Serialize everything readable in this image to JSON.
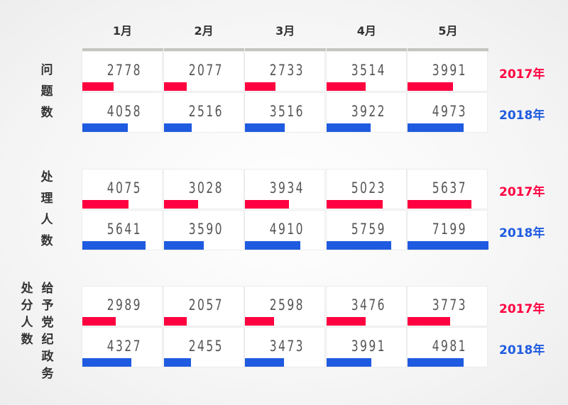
{
  "chart_data": {
    "type": "bar",
    "categories": [
      "1月",
      "2月",
      "3月",
      "4月",
      "5月"
    ],
    "colors": {
      "2017年": "#ff0040",
      "2018年": "#1f5be0"
    },
    "groups": [
      {
        "label": [
          "问",
          "题",
          "数"
        ],
        "label2": [],
        "series": [
          {
            "name": "2017年",
            "values": [
              2778,
              2077,
              2733,
              3514,
              3991
            ]
          },
          {
            "name": "2018年",
            "values": [
              4058,
              2516,
              3516,
              3922,
              4973
            ]
          }
        ]
      },
      {
        "label": [
          "处",
          "理",
          "人",
          "数"
        ],
        "label2": [],
        "series": [
          {
            "name": "2017年",
            "values": [
              4075,
              3028,
              3934,
              5023,
              5637
            ]
          },
          {
            "name": "2018年",
            "values": [
              5641,
              3590,
              4910,
              5759,
              7199
            ]
          }
        ]
      },
      {
        "label": [
          "处",
          "分",
          "人",
          "数"
        ],
        "label2": [
          "给",
          "予",
          "党",
          "纪",
          "政",
          "务"
        ],
        "series": [
          {
            "name": "2017年",
            "values": [
              2989,
              2057,
              2598,
              3476,
              3773
            ]
          },
          {
            "name": "2018年",
            "values": [
              4327,
              2455,
              3473,
              3991,
              4981
            ]
          }
        ]
      }
    ]
  }
}
